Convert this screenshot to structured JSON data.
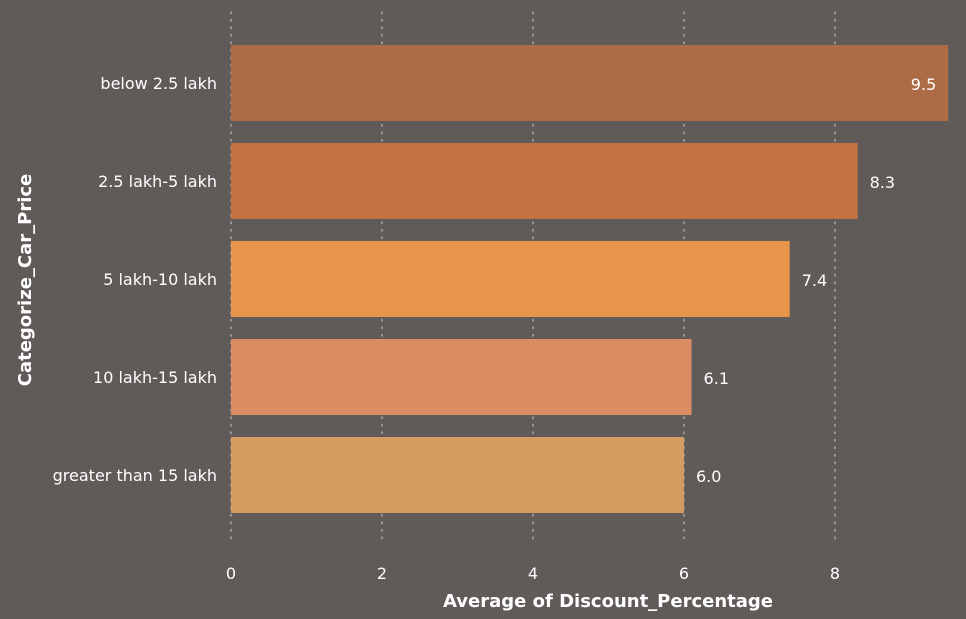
{
  "chart_data": {
    "type": "bar",
    "orientation": "horizontal",
    "categories": [
      "below 2.5 lakh",
      "2.5 lakh-5 lakh",
      "5 lakh-10 lakh",
      "10 lakh-15 lakh",
      "greater than 15 lakh"
    ],
    "values": [
      9.5,
      8.3,
      7.4,
      6.1,
      6.0
    ],
    "data_labels": [
      "9.5",
      "8.3",
      "7.4",
      "6.1",
      "6.0"
    ],
    "bar_colors": [
      "#ae6c46",
      "#c37342",
      "#e9944b",
      "#dc8c62",
      "#d59c62"
    ],
    "xlabel": "Average of Discount_Percentage",
    "ylabel": "Categorize_Car_Price",
    "xticks": [
      0,
      2,
      4,
      6,
      8
    ],
    "xtick_labels": [
      "0",
      "2",
      "4",
      "6",
      "8"
    ],
    "xlim": [
      0,
      9.55
    ],
    "grid": "vertical dotted",
    "legend": "none"
  },
  "colors": {
    "background": "#605a58",
    "text": "#ffffff",
    "grid": "#a9a3a1"
  }
}
